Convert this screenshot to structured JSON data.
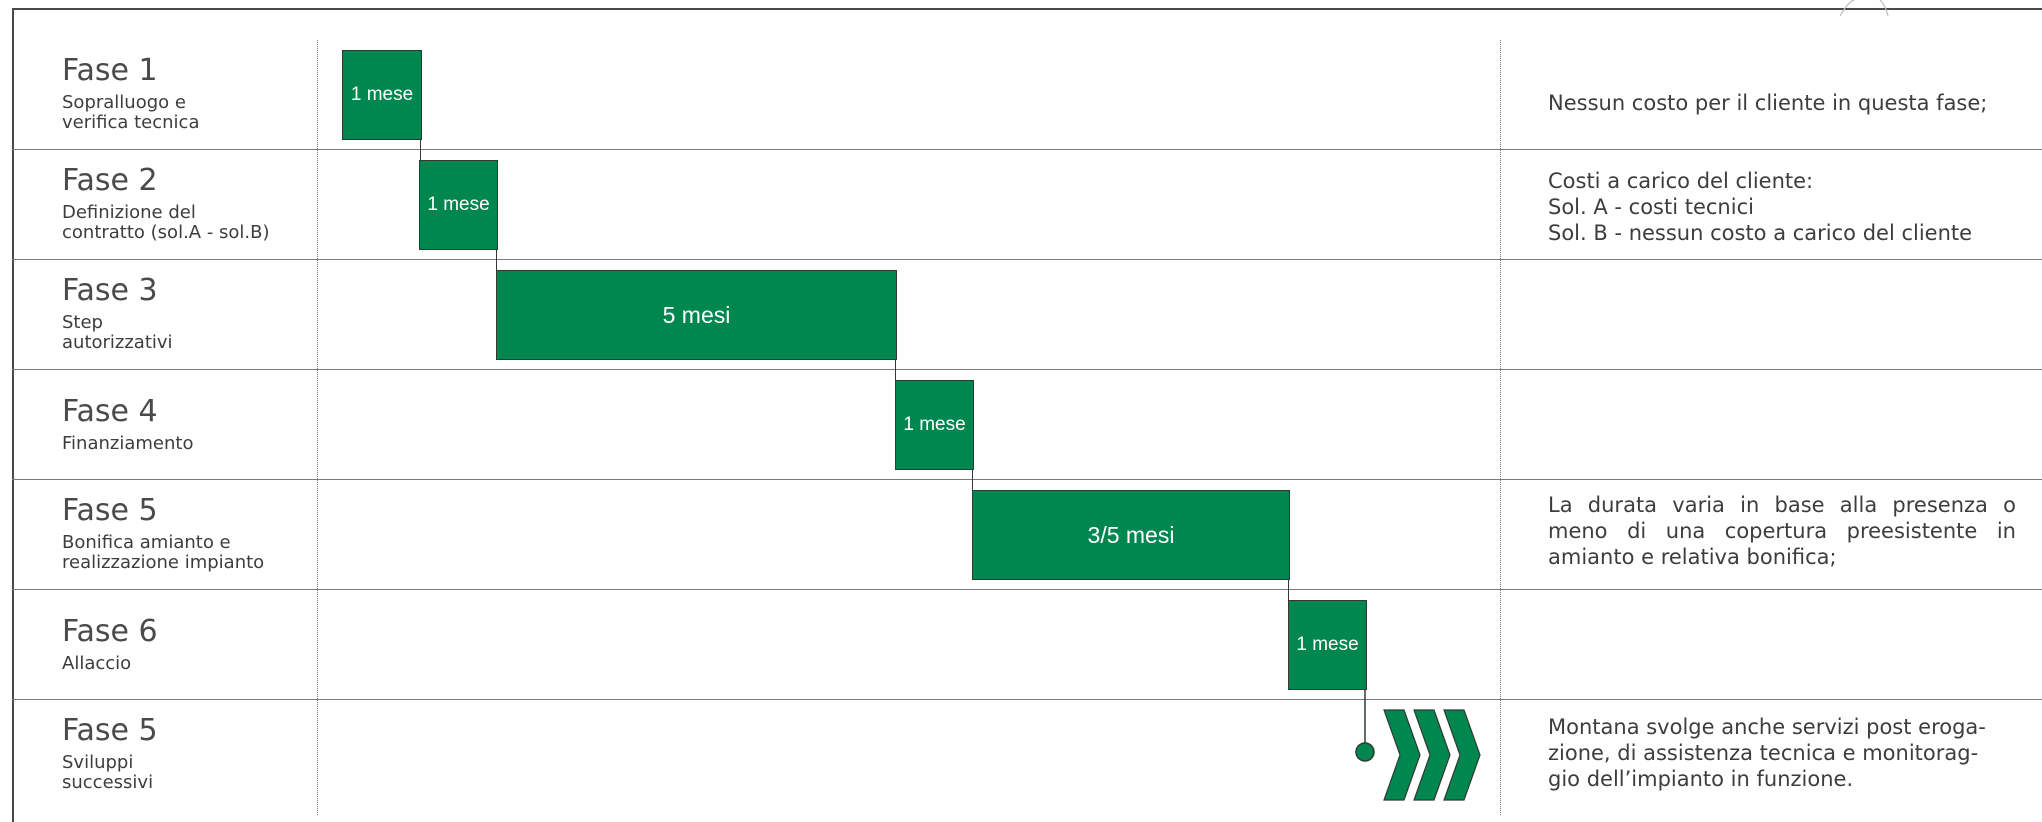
{
  "phases": [
    {
      "title": "Fase 1",
      "subtitle": [
        "Sopralluogo e",
        "verifica tecnica"
      ],
      "duration": "1 mese",
      "months": 1,
      "note": [
        "Nessun costo per il cliente in questa fase;"
      ]
    },
    {
      "title": "Fase 2",
      "subtitle": [
        "Definizione del",
        "contratto (sol.A - sol.B)"
      ],
      "duration": "1 mese",
      "months": 1,
      "note": [
        "Costi a carico del cliente:",
        "Sol. A - costi tecnici",
        "Sol. B - nessun costo a carico del cliente"
      ]
    },
    {
      "title": "Fase 3",
      "subtitle": [
        "Step",
        "autorizzativi"
      ],
      "duration": "5 mesi",
      "months": 5,
      "note": []
    },
    {
      "title": "Fase 4",
      "subtitle": [
        "Finanziamento"
      ],
      "duration": "1 mese",
      "months": 1,
      "note": []
    },
    {
      "title": "Fase 5",
      "subtitle": [
        "Bonifica amianto e",
        "realizzazione impianto"
      ],
      "duration": "3/5 mesi",
      "months_range": [
        3,
        5
      ],
      "note": [
        "La durata varia in base alla presenza o meno di una copertura preesistente in amianto e relativa bonifica;"
      ]
    },
    {
      "title": "Fase 6",
      "subtitle": [
        "Allaccio"
      ],
      "duration": "1 mese",
      "months": 1,
      "note": []
    },
    {
      "title": "Fase 5",
      "subtitle": [
        "Sviluppi",
        "successivi"
      ],
      "duration": "",
      "note": [
        "Montana svolge anche servizi post eroga-",
        "zione, di assistenza tecnica e monitorag-",
        "gio dell’impianto in funzione."
      ]
    }
  ],
  "colors": {
    "bar": "#00874f",
    "bar_border": "#2f3a33",
    "rule": "#7a7a7a",
    "text": "#3d3d3d"
  },
  "icons": {
    "final_marker": "circle-dot-icon",
    "continuation": "triple-chevron-right-icon"
  }
}
